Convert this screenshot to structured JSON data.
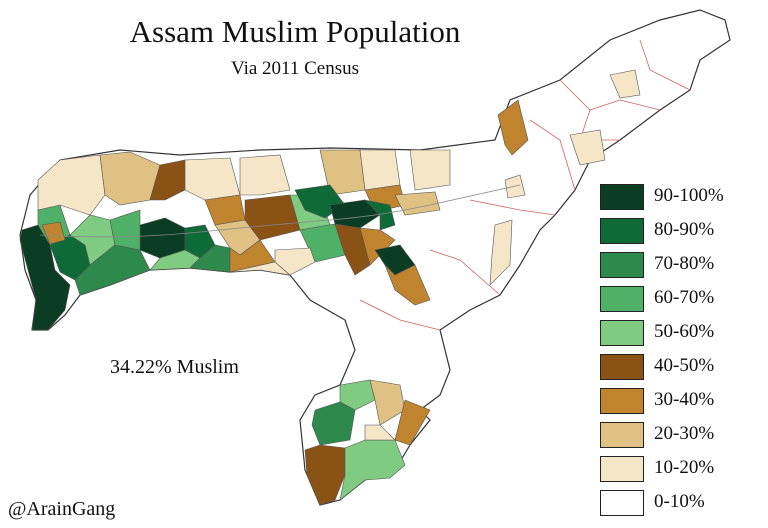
{
  "title": "Assam Muslim Population",
  "subtitle": "Via 2011 Census",
  "statewide_share": "34.22% Muslim",
  "credit": "@ArainGang",
  "legend": [
    {
      "label": "90-100%",
      "color": "#0b3d24"
    },
    {
      "label": "80-90%",
      "color": "#0e6a37"
    },
    {
      "label": "70-80%",
      "color": "#2e8a4c"
    },
    {
      "label": "60-70%",
      "color": "#4fb168"
    },
    {
      "label": "50-60%",
      "color": "#7fcb82"
    },
    {
      "label": "40-50%",
      "color": "#8a5315"
    },
    {
      "label": "30-40%",
      "color": "#c0842f"
    },
    {
      "label": "20-30%",
      "color": "#dfc283"
    },
    {
      "label": "10-20%",
      "color": "#f4e6c6"
    },
    {
      "label": "0-10%",
      "color": "#ffffff"
    }
  ],
  "colors": {
    "border": "#333333",
    "subdivision_border": "#d06060"
  }
}
